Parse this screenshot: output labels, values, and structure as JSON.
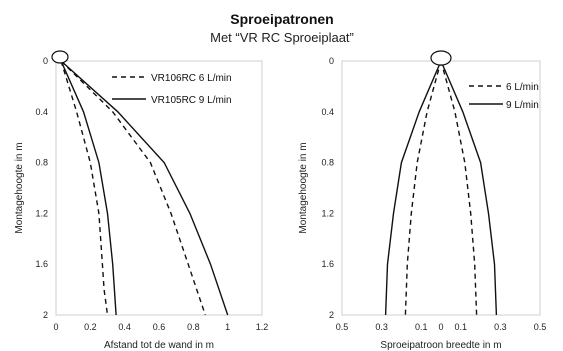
{
  "header": {
    "title": "Sproeipatronen",
    "subtitle": "Met “VR RC Sproeiplaat”"
  },
  "chart_data": [
    {
      "type": "line",
      "xlabel": "Afstand tot de wand in m",
      "ylabel": "Montagehoogte in m",
      "xlim": [
        0,
        1.2
      ],
      "ylim": [
        0,
        2
      ],
      "y_inverted": true,
      "x_ticks": [
        "0",
        "0.2",
        "0.4",
        "0.6",
        "0.8",
        "1",
        "1.2"
      ],
      "y_ticks": [
        "0",
        "0.4",
        "0.8",
        "1.2",
        "1.6",
        "2"
      ],
      "grid": false,
      "legend_position": "top-right",
      "series": [
        {
          "name": "VR106RC 6 L/min",
          "style": "dashed",
          "x": [
            0.03,
            0.12,
            0.2,
            0.25,
            0.27,
            0.28,
            0.3
          ],
          "y": [
            0,
            0.4,
            0.8,
            1.2,
            1.6,
            1.8,
            2
          ]
        },
        {
          "name": "VR105RC 9 L/min",
          "style": "solid",
          "x": [
            0.03,
            0.16,
            0.25,
            0.3,
            0.33,
            0.34,
            0.35
          ],
          "y": [
            0,
            0.4,
            0.8,
            1.2,
            1.6,
            1.8,
            2
          ]
        },
        {
          "name": "VR106RC 6 L/min",
          "style": "dashed",
          "x": [
            0.03,
            0.33,
            0.55,
            0.67,
            0.77,
            0.87
          ],
          "y": [
            0,
            0.4,
            0.8,
            1.2,
            1.6,
            2
          ]
        },
        {
          "name": "VR105RC 9 L/min",
          "style": "solid",
          "x": [
            0.03,
            0.36,
            0.63,
            0.78,
            0.9,
            1.0
          ],
          "y": [
            0,
            0.4,
            0.8,
            1.2,
            1.6,
            2
          ]
        }
      ]
    },
    {
      "type": "line",
      "xlabel": "Sproeipatroon breedte in m",
      "ylabel": "Montagehoogte in m",
      "xlim": [
        -0.5,
        0.5
      ],
      "ylim": [
        0,
        2
      ],
      "y_inverted": true,
      "x_ticks": [
        "0.5",
        "0.3",
        "0.1",
        "0",
        "0.1",
        "0.3",
        "0.5"
      ],
      "y_ticks": [
        "0",
        "0.4",
        "0.8",
        "1.2",
        "1.6",
        "2"
      ],
      "grid": false,
      "legend_position": "top-right",
      "series": [
        {
          "name": "6 L/min",
          "style": "dashed",
          "x": [
            0,
            -0.07,
            -0.12,
            -0.15,
            -0.17,
            -0.18
          ],
          "y": [
            0,
            0.4,
            0.8,
            1.2,
            1.6,
            2
          ]
        },
        {
          "name": "6 L/min",
          "style": "dashed",
          "x": [
            0,
            0.07,
            0.12,
            0.15,
            0.17,
            0.18
          ],
          "y": [
            0,
            0.4,
            0.8,
            1.2,
            1.6,
            2
          ]
        },
        {
          "name": "9 L/min",
          "style": "solid",
          "x": [
            0,
            -0.11,
            -0.2,
            -0.24,
            -0.27,
            -0.28
          ],
          "y": [
            0,
            0.4,
            0.8,
            1.2,
            1.6,
            2
          ]
        },
        {
          "name": "9 L/min",
          "style": "solid",
          "x": [
            0,
            0.11,
            0.2,
            0.24,
            0.27,
            0.28
          ],
          "y": [
            0,
            0.4,
            0.8,
            1.2,
            1.6,
            2
          ]
        }
      ]
    }
  ]
}
